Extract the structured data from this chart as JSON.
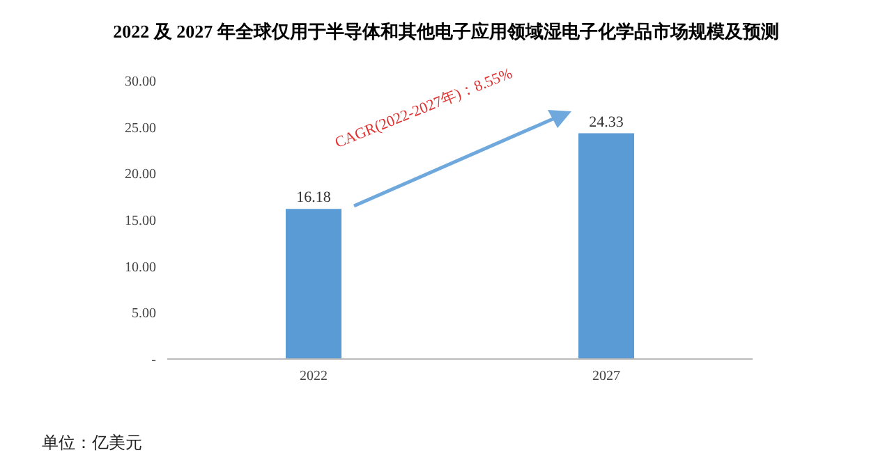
{
  "chart_data": {
    "type": "bar",
    "title": "2022 及 2027 年全球仅用于半导体和其他电子应用领域湿电子化学品市场规模及预测",
    "categories": [
      "2022",
      "2027"
    ],
    "values": [
      16.18,
      24.33
    ],
    "color": "#5b9bd5",
    "data_labels": true,
    "ylim": [
      0,
      30
    ],
    "yticks": [
      {
        "value": 0,
        "label": "-"
      },
      {
        "value": 5,
        "label": "5.00"
      },
      {
        "value": 10,
        "label": "10.00"
      },
      {
        "value": 15,
        "label": "15.00"
      },
      {
        "value": 20,
        "label": "20.00"
      },
      {
        "value": 25,
        "label": "25.00"
      },
      {
        "value": 30,
        "label": "30.00"
      }
    ],
    "grid": false,
    "legend": false,
    "annotations": [
      "CAGR(2022-2027年)：8.55%",
      "单位：亿美元"
    ]
  }
}
